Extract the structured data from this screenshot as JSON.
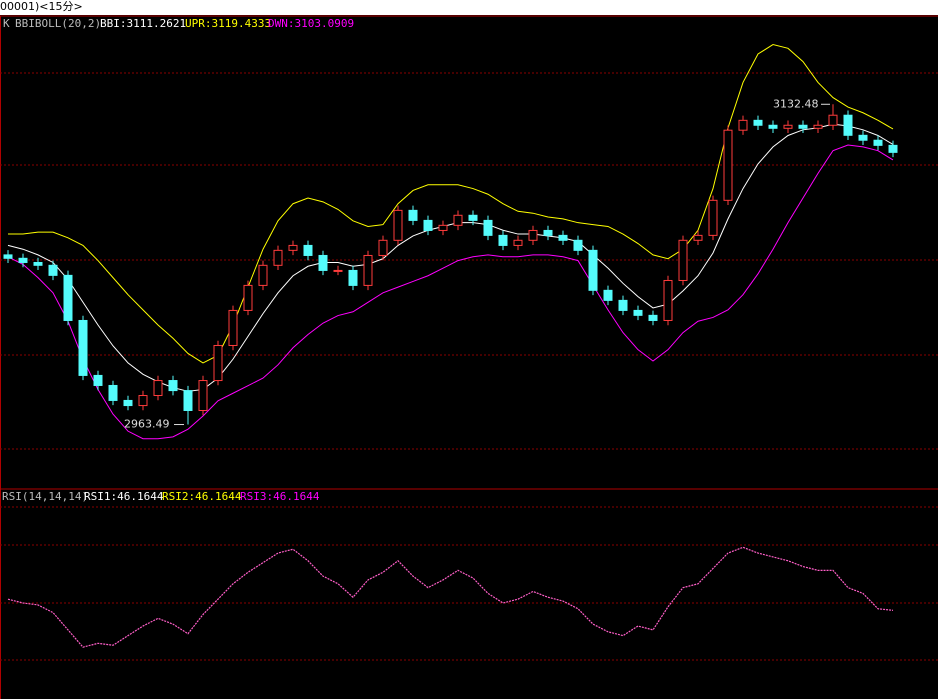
{
  "header": {
    "title": "00001)<15分>"
  },
  "chart_data": [
    {
      "type": "candlestick",
      "title": "K",
      "indicator": "BBIBOLL(20,2)",
      "up_color": "#ff3c3c",
      "down_color": "#54fcfc",
      "ylim": [
        2930,
        3178
      ],
      "open": [
        3053.0,
        3051.2,
        3049.0,
        3047.5,
        3042.2,
        3018.4,
        2989.4,
        2984.1,
        2976.2,
        2973.5,
        2978.8,
        2986.7,
        2981.4,
        2970.9,
        2986.7,
        3005.2,
        3023.7,
        3036.9,
        3047.5,
        3055.4,
        3058.0,
        3052.7,
        3044.8,
        3044.8,
        3036.9,
        3052.7,
        3060.7,
        3076.5,
        3071.2,
        3065.9,
        3068.6,
        3073.9,
        3071.2,
        3063.3,
        3058.0,
        3060.7,
        3065.9,
        3063.3,
        3060.7,
        3055.4,
        3034.3,
        3029.0,
        3023.7,
        3021.1,
        3018.4,
        3039.5,
        3060.7,
        3063.3,
        3081.8,
        3118.8,
        3124.0,
        3121.4,
        3119.8,
        3121.4,
        3119.8,
        3121.4,
        3126.7,
        3116.1,
        3113.5,
        3110.8
      ],
      "high": [
        3055.5,
        3053.7,
        3051.5,
        3050.0,
        3044.7,
        3020.9,
        2991.9,
        2986.6,
        2978.7,
        2981.3,
        2989.2,
        2989.2,
        2983.9,
        2989.2,
        3007.7,
        3026.2,
        3039.4,
        3050.0,
        3057.9,
        3060.5,
        3060.5,
        3055.2,
        3047.3,
        3047.3,
        3055.2,
        3063.2,
        3079.0,
        3079.0,
        3073.7,
        3071.1,
        3076.4,
        3076.4,
        3073.7,
        3065.8,
        3063.2,
        3068.4,
        3068.4,
        3065.8,
        3063.2,
        3057.9,
        3036.8,
        3031.5,
        3026.2,
        3023.6,
        3042.0,
        3063.2,
        3065.8,
        3084.3,
        3121.3,
        3126.5,
        3126.5,
        3123.9,
        3123.9,
        3123.9,
        3123.9,
        3132.48,
        3129.2,
        3118.6,
        3116.0,
        3113.3
      ],
      "low": [
        3048.7,
        3046.5,
        3045.0,
        3039.7,
        3015.9,
        2986.9,
        2981.6,
        2973.7,
        2971.0,
        2971.0,
        2976.3,
        2978.9,
        2963.49,
        2968.4,
        2984.2,
        3002.7,
        3021.2,
        3034.4,
        3045.0,
        3052.9,
        3050.2,
        3042.3,
        3042.3,
        3034.4,
        3034.4,
        3050.2,
        3058.2,
        3068.7,
        3063.4,
        3063.4,
        3066.1,
        3068.7,
        3060.8,
        3055.5,
        3055.5,
        3058.2,
        3060.8,
        3058.2,
        3052.9,
        3031.8,
        3026.5,
        3021.2,
        3018.6,
        3015.9,
        3015.9,
        3037.0,
        3058.2,
        3060.8,
        3079.3,
        3116.3,
        3118.9,
        3117.3,
        3117.3,
        3117.3,
        3117.3,
        3118.9,
        3113.6,
        3111.0,
        3108.3,
        3104.6
      ],
      "close": [
        3051.2,
        3049.0,
        3047.5,
        3042.2,
        3018.4,
        2989.4,
        2984.1,
        2976.2,
        2973.5,
        2978.8,
        2986.7,
        2981.4,
        2970.9,
        2986.7,
        3005.2,
        3023.7,
        3036.9,
        3047.5,
        3055.4,
        3058.0,
        3052.7,
        3044.8,
        3044.8,
        3036.9,
        3052.7,
        3060.7,
        3076.5,
        3071.2,
        3065.9,
        3068.6,
        3073.9,
        3071.2,
        3063.3,
        3058.0,
        3060.7,
        3065.9,
        3063.3,
        3060.7,
        3055.4,
        3034.3,
        3029.0,
        3023.7,
        3021.1,
        3018.4,
        3039.5,
        3060.7,
        3063.3,
        3081.8,
        3118.8,
        3124.0,
        3121.4,
        3119.8,
        3121.4,
        3119.8,
        3121.4,
        3126.7,
        3116.1,
        3113.5,
        3110.8,
        3107.1
      ],
      "series": [
        {
          "name": "BBI:3111.2621",
          "color": "#ffffff",
          "values": [
            3058,
            3056,
            3053,
            3049,
            3040,
            3028,
            3016,
            3005,
            2996,
            2990,
            2986,
            2983,
            2981,
            2982,
            2988,
            2998,
            3010,
            3022,
            3033,
            3042,
            3047,
            3049,
            3049,
            3047,
            3048,
            3051,
            3058,
            3063,
            3066,
            3068,
            3070,
            3070,
            3069,
            3066,
            3064,
            3064,
            3063,
            3062,
            3060,
            3053,
            3046,
            3038,
            3031,
            3025,
            3027,
            3034,
            3042,
            3054,
            3072,
            3088,
            3101,
            3110,
            3116,
            3119,
            3120,
            3122,
            3121,
            3119,
            3116,
            3111.2621
          ]
        },
        {
          "name": "UPR:3119.4333",
          "color": "#ffff00",
          "values": [
            3064,
            3064,
            3065,
            3065,
            3062,
            3058,
            3050,
            3041,
            3032,
            3024,
            3016,
            3009,
            3001,
            2996,
            3000,
            3016,
            3036,
            3056,
            3071,
            3080,
            3083,
            3081,
            3077,
            3071,
            3068,
            3069,
            3080,
            3087,
            3090,
            3090,
            3090,
            3088,
            3085,
            3080,
            3076,
            3075,
            3073,
            3072,
            3070,
            3069,
            3068,
            3064,
            3059,
            3053,
            3051,
            3056,
            3066,
            3088,
            3120,
            3144,
            3159,
            3164,
            3162,
            3155,
            3144,
            3136,
            3131,
            3128,
            3124,
            3119.4333
          ]
        },
        {
          "name": "DWN:3103.0909",
          "color": "#ff00ff",
          "values": [
            3052,
            3048,
            3041,
            3033,
            3018,
            2998,
            2982,
            2969,
            2960,
            2956,
            2956,
            2957,
            2961,
            2968,
            2976,
            2980,
            2984,
            2988,
            2995,
            3004,
            3011,
            3017,
            3021,
            3023,
            3028,
            3033,
            3036,
            3039,
            3042,
            3046,
            3050,
            3052,
            3053,
            3052,
            3052,
            3053,
            3053,
            3052,
            3050,
            3037,
            3024,
            3012,
            3003,
            2997,
            3003,
            3012,
            3018,
            3020,
            3024,
            3032,
            3043,
            3056,
            3070,
            3083,
            3096,
            3108,
            3111,
            3110,
            3108,
            3103.0909
          ]
        }
      ],
      "annotations": {
        "high": "3132.48",
        "low": "2963.49"
      }
    },
    {
      "type": "line",
      "title": "RSI(14,14,14)",
      "legend": [
        {
          "name": "RSI1:46.1644",
          "color": "#ffffff"
        },
        {
          "name": "RSI2:46.1644",
          "color": "#ffff00"
        },
        {
          "name": "RSI3:46.1644",
          "color": "#ff00ff"
        }
      ],
      "color": "#ff5fc8",
      "ylim": [
        0,
        100
      ],
      "values": [
        52,
        50,
        49,
        45,
        36,
        27,
        29,
        28,
        33,
        38,
        42,
        39,
        34,
        44,
        52,
        60,
        66,
        71,
        76,
        78,
        72,
        64,
        60,
        53,
        62,
        66,
        72,
        64,
        58,
        62,
        67,
        63,
        55,
        50,
        52,
        56,
        53,
        51,
        47,
        39,
        35,
        33,
        38,
        36,
        48,
        58,
        60,
        68,
        76,
        79,
        76,
        74,
        72,
        69,
        67,
        67,
        58,
        55,
        47,
        46.1644
      ]
    }
  ]
}
